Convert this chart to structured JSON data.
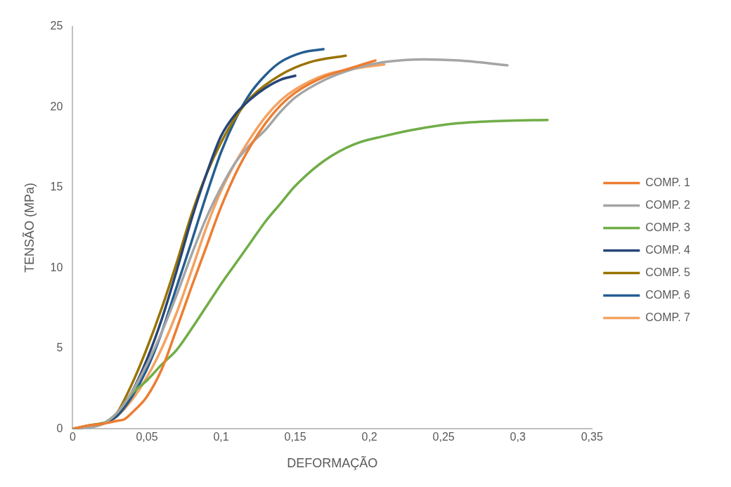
{
  "chart_data": {
    "type": "line",
    "xlabel": "DEFORMAÇÃO",
    "ylabel": "TENSÃO (MPa)",
    "xlim": [
      0,
      0.35
    ],
    "xticks": [
      {
        "value": 0,
        "label": "0"
      },
      {
        "value": 0.05,
        "label": "0,05"
      },
      {
        "value": 0.1,
        "label": "0,1"
      },
      {
        "value": 0.15,
        "label": "0,15"
      },
      {
        "value": 0.2,
        "label": "0,2"
      },
      {
        "value": 0.25,
        "label": "0,25"
      },
      {
        "value": 0.3,
        "label": "0,3"
      },
      {
        "value": 0.35,
        "label": "0,35"
      }
    ],
    "ylim": [
      0,
      25
    ],
    "yticks": [
      0,
      5,
      10,
      15,
      20,
      25
    ],
    "grid": false,
    "legend": "right",
    "marker": "none",
    "line_style": "solid",
    "series": [
      {
        "name": "COMP. 1",
        "color": "#ed7d31",
        "x": [
          0,
          0.01,
          0.02,
          0.03,
          0.035,
          0.04,
          0.05,
          0.06,
          0.07,
          0.08,
          0.09,
          0.1,
          0.11,
          0.12,
          0.13,
          0.14,
          0.15,
          0.17,
          0.19,
          0.204
        ],
        "values": [
          0,
          0.2,
          0.3,
          0.5,
          0.6,
          1,
          2,
          3.7,
          6.2,
          8.8,
          11.3,
          13.8,
          15.9,
          17.6,
          19,
          20.1,
          20.9,
          21.9,
          22.5,
          22.9
        ]
      },
      {
        "name": "COMP. 2",
        "color": "#a5a5a5",
        "x": [
          0,
          0.02,
          0.03,
          0.04,
          0.05,
          0.06,
          0.07,
          0.08,
          0.09,
          0.1,
          0.11,
          0.12,
          0.13,
          0.14,
          0.15,
          0.17,
          0.19,
          0.21,
          0.237,
          0.26,
          0.293
        ],
        "values": [
          0,
          0.3,
          1,
          2.3,
          4,
          6,
          8.3,
          10.8,
          13.1,
          15,
          16.6,
          17.7,
          18.6,
          19.7,
          20.6,
          21.7,
          22.4,
          22.8,
          22.97,
          22.9,
          22.6
        ]
      },
      {
        "name": "COMP. 3",
        "color": "#70ad47",
        "x": [
          0,
          0.02,
          0.03,
          0.04,
          0.05,
          0.06,
          0.07,
          0.08,
          0.09,
          0.1,
          0.11,
          0.12,
          0.13,
          0.14,
          0.15,
          0.17,
          0.19,
          0.21,
          0.23,
          0.26,
          0.29,
          0.32
        ],
        "values": [
          0,
          0.3,
          1,
          2.2,
          3,
          4,
          4.9,
          6.2,
          7.6,
          9,
          10.3,
          11.6,
          12.9,
          14,
          15.1,
          16.7,
          17.7,
          18.2,
          18.6,
          19,
          19.15,
          19.2
        ]
      },
      {
        "name": "COMP. 4",
        "color": "#264478",
        "x": [
          0,
          0.02,
          0.03,
          0.04,
          0.05,
          0.06,
          0.07,
          0.08,
          0.09,
          0.1,
          0.11,
          0.12,
          0.13,
          0.14,
          0.15
        ],
        "values": [
          0,
          0.3,
          0.9,
          2.3,
          4.3,
          6.8,
          9.8,
          13,
          15.8,
          18.2,
          19.6,
          20.5,
          21.2,
          21.7,
          21.95
        ]
      },
      {
        "name": "COMP. 5",
        "color": "#997300",
        "x": [
          0,
          0.01,
          0.02,
          0.025,
          0.03,
          0.04,
          0.05,
          0.06,
          0.07,
          0.08,
          0.09,
          0.1,
          0.11,
          0.12,
          0.14,
          0.16,
          0.184
        ],
        "values": [
          0,
          0.2,
          0.35,
          0.5,
          1,
          2.8,
          5,
          7.5,
          10.3,
          13.3,
          15.8,
          17.8,
          19.4,
          20.6,
          22,
          22.8,
          23.2
        ]
      },
      {
        "name": "COMP. 6",
        "color": "#255e91",
        "x": [
          0,
          0.02,
          0.03,
          0.04,
          0.05,
          0.06,
          0.07,
          0.08,
          0.09,
          0.1,
          0.11,
          0.12,
          0.13,
          0.14,
          0.155,
          0.169
        ],
        "values": [
          0,
          0.3,
          0.8,
          2,
          3.7,
          6,
          8.8,
          11.6,
          14.5,
          17.2,
          19.3,
          20.9,
          22,
          22.8,
          23.4,
          23.6
        ]
      },
      {
        "name": "COMP. 7",
        "color": "#f4a261",
        "x": [
          0,
          0.02,
          0.03,
          0.04,
          0.05,
          0.06,
          0.07,
          0.08,
          0.09,
          0.1,
          0.11,
          0.12,
          0.13,
          0.14,
          0.15,
          0.17,
          0.19,
          0.21
        ],
        "values": [
          0,
          0.3,
          0.8,
          1.8,
          3.2,
          5,
          7.2,
          9.8,
          12.5,
          14.8,
          16.6,
          18.1,
          19.4,
          20.4,
          21.1,
          22,
          22.4,
          22.65
        ]
      }
    ]
  }
}
